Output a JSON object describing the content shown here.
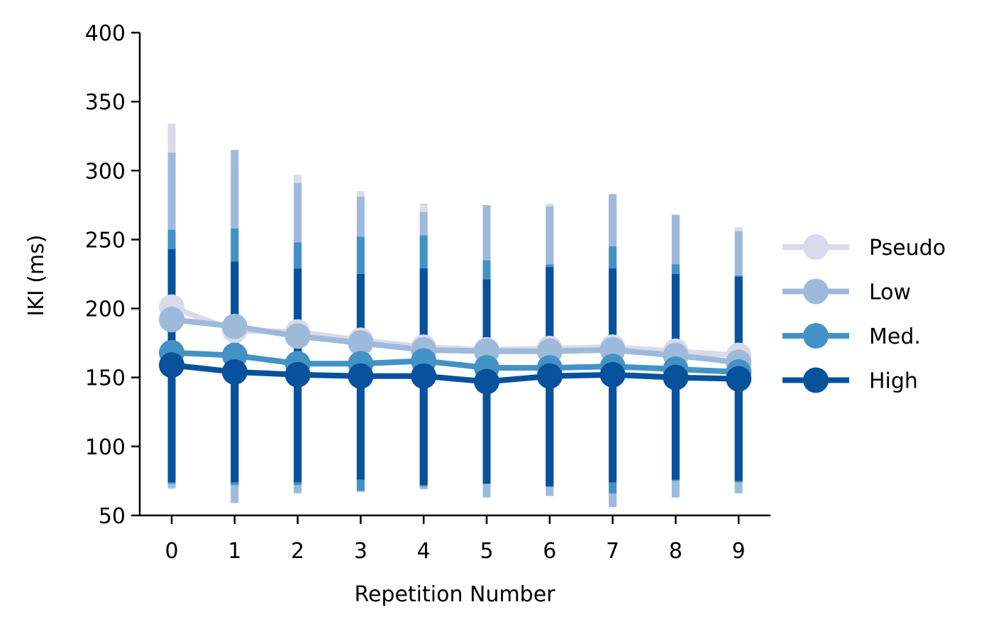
{
  "chart_data": {
    "type": "line",
    "title": "",
    "xlabel": "Repetition Number",
    "ylabel": "IKI (ms)",
    "x": [
      0,
      1,
      2,
      3,
      4,
      5,
      6,
      7,
      8,
      9
    ],
    "xticks": [
      "0",
      "1",
      "2",
      "3",
      "4",
      "5",
      "6",
      "7",
      "8",
      "9"
    ],
    "ylim": [
      50,
      400
    ],
    "yticks": [
      "50",
      "100",
      "150",
      "200",
      "250",
      "300",
      "350",
      "400"
    ],
    "grid": false,
    "legend_position": "right",
    "series": [
      {
        "name": "Pseudo",
        "color": "#dadaeb",
        "values": [
          201,
          184,
          183,
          177,
          172,
          170,
          171,
          172,
          169,
          166
        ],
        "err_low": [
          69,
          69,
          69,
          69,
          69,
          69,
          69,
          69,
          69,
          69
        ],
        "err_high": [
          334,
          300,
          297,
          285,
          276,
          275,
          276,
          280,
          268,
          259
        ]
      },
      {
        "name": "Low",
        "color": "#9ebadb",
        "values": [
          192,
          187,
          180,
          175,
          170,
          169,
          169,
          170,
          166,
          161
        ],
        "err_low": [
          70,
          59,
          66,
          67,
          69,
          63,
          64,
          56,
          63,
          66
        ],
        "err_high": [
          313,
          315,
          291,
          281,
          270,
          275,
          274,
          283,
          268,
          256
        ]
      },
      {
        "name": "Med.",
        "color": "#4292c6",
        "values": [
          168,
          166,
          160,
          160,
          162,
          157,
          157,
          158,
          156,
          154
        ],
        "err_low": [
          73,
          72,
          72,
          68,
          71,
          73,
          71,
          66,
          75,
          74
        ],
        "err_high": [
          257,
          258,
          248,
          252,
          253,
          235,
          232,
          245,
          232,
          224
        ]
      },
      {
        "name": "High",
        "color": "#08519c",
        "values": [
          159,
          154,
          152,
          151,
          151,
          147,
          151,
          152,
          150,
          149
        ],
        "err_low": [
          74,
          74,
          74,
          76,
          72,
          73,
          71,
          74,
          76,
          75
        ],
        "err_high": [
          243,
          234,
          229,
          225,
          229,
          221,
          230,
          229,
          225,
          223
        ]
      }
    ]
  }
}
